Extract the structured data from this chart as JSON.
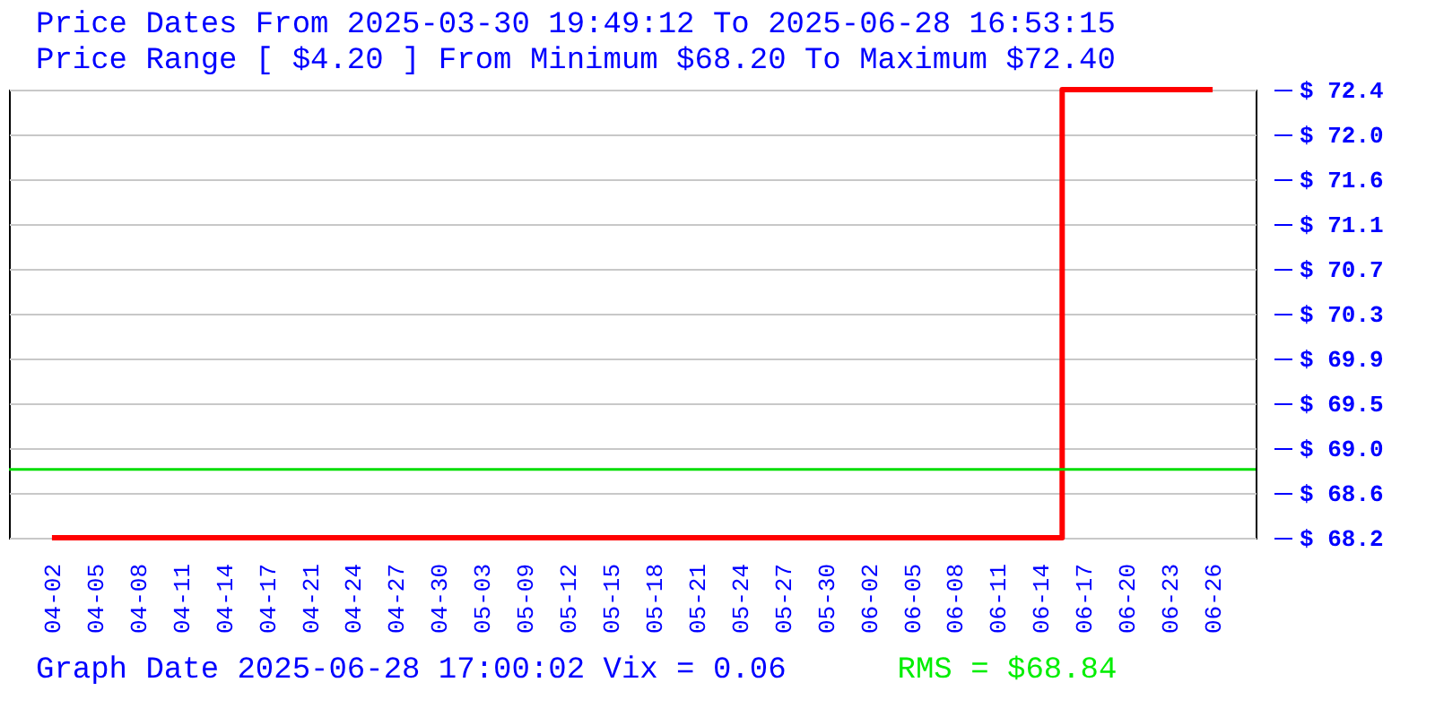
{
  "chart_data": {
    "type": "step",
    "title": "Price Dates From 2025-03-30 19:49:12 To 2025-06-28 16:53:15",
    "subtitle": "Price Range [ $4.20 ] From Minimum $68.20 To Maximum $72.40",
    "annotations": [
      "Graph Date 2025-06-28 17:00:02 Vix = 0.06",
      "RMS = $68.84"
    ],
    "categories": [
      "04-02",
      "04-05",
      "04-08",
      "04-11",
      "04-14",
      "04-17",
      "04-21",
      "04-24",
      "04-27",
      "04-30",
      "05-03",
      "05-09",
      "05-12",
      "05-15",
      "05-18",
      "05-21",
      "05-24",
      "05-27",
      "05-30",
      "06-02",
      "06-05",
      "06-08",
      "06-11",
      "06-14",
      "06-17",
      "06-20",
      "06-23",
      "06-26"
    ],
    "series": [
      {
        "color": "#ff0000",
        "values": [
          68.2,
          68.2,
          68.2,
          68.2,
          68.2,
          68.2,
          68.2,
          68.2,
          68.2,
          68.2,
          68.2,
          68.2,
          68.2,
          68.2,
          68.2,
          68.2,
          68.2,
          68.2,
          68.2,
          68.2,
          68.2,
          68.2,
          68.2,
          68.2,
          72.4,
          72.4,
          72.4,
          72.4
        ]
      }
    ],
    "ylim": [
      68.2,
      72.4
    ],
    "yticks": [
      {
        "value": 68.2,
        "label": "$ 68.2"
      },
      {
        "value": 68.62,
        "label": "$ 68.6"
      },
      {
        "value": 69.04,
        "label": "$ 69.0"
      },
      {
        "value": 69.46,
        "label": "$ 69.5"
      },
      {
        "value": 69.88,
        "label": "$ 69.9"
      },
      {
        "value": 70.3,
        "label": "$ 70.3"
      },
      {
        "value": 70.72,
        "label": "$ 70.7"
      },
      {
        "value": 71.14,
        "label": "$ 71.1"
      },
      {
        "value": 71.56,
        "label": "$ 71.6"
      },
      {
        "value": 71.98,
        "label": "$ 72.0"
      },
      {
        "value": 72.4,
        "label": "$ 72.4"
      }
    ],
    "ref_lines": [
      {
        "axis": "y",
        "value": 68.84,
        "label": null,
        "color": "#00dd00"
      }
    ],
    "grid": "y",
    "line_style": "solid"
  }
}
